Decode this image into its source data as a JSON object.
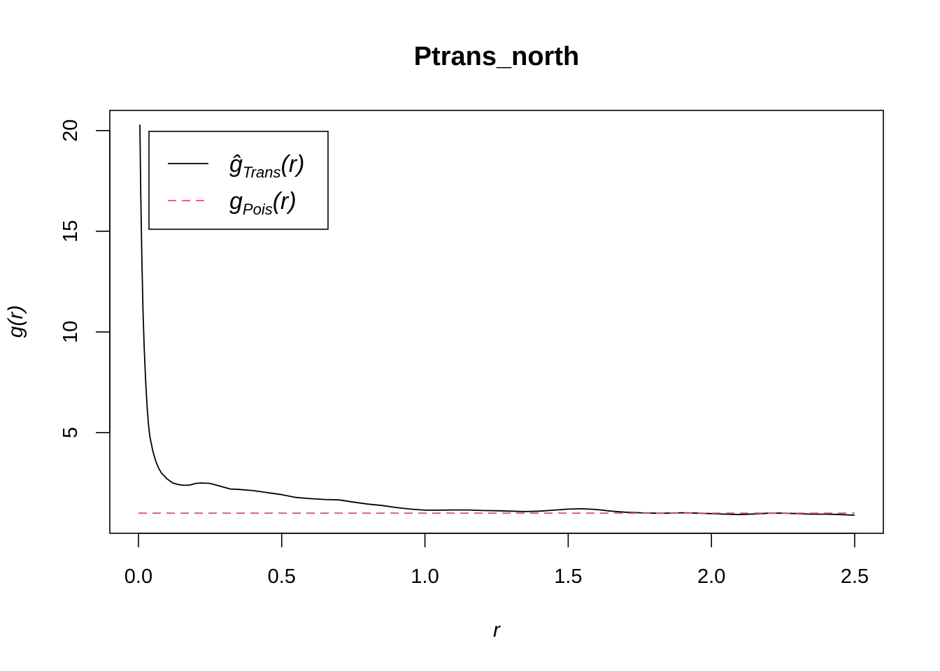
{
  "chart_data": {
    "type": "line",
    "title": "Ptrans_north",
    "xlabel": "r",
    "ylabel": "g(r)",
    "xlim": [
      -0.1,
      2.6
    ],
    "ylim": [
      0.0,
      21.0
    ],
    "x_ticks": [
      "0.0",
      "0.5",
      "1.0",
      "1.5",
      "2.0",
      "2.5"
    ],
    "y_ticks": [
      "5",
      "10",
      "15",
      "20"
    ],
    "grid": false,
    "legend_position": "top-left",
    "series": [
      {
        "name": "ĝ_Trans(r)",
        "legend_main": "ĝ",
        "legend_sub": "Trans",
        "legend_tail": "(r)",
        "color": "#000000",
        "dash": "solid",
        "x": [
          0.005,
          0.008,
          0.012,
          0.016,
          0.02,
          0.025,
          0.03,
          0.035,
          0.04,
          0.05,
          0.06,
          0.07,
          0.08,
          0.09,
          0.1,
          0.12,
          0.14,
          0.16,
          0.18,
          0.2,
          0.22,
          0.25,
          0.27,
          0.3,
          0.32,
          0.35,
          0.4,
          0.45,
          0.5,
          0.55,
          0.6,
          0.65,
          0.7,
          0.75,
          0.8,
          0.85,
          0.9,
          0.95,
          1.0,
          1.05,
          1.1,
          1.15,
          1.2,
          1.25,
          1.3,
          1.35,
          1.4,
          1.45,
          1.5,
          1.55,
          1.6,
          1.65,
          1.7,
          1.75,
          1.8,
          1.85,
          1.9,
          1.95,
          2.0,
          2.05,
          2.1,
          2.15,
          2.2,
          2.25,
          2.3,
          2.35,
          2.4,
          2.45,
          2.5
        ],
        "values": [
          20.3,
          17.0,
          13.5,
          11.0,
          9.2,
          7.6,
          6.3,
          5.4,
          4.8,
          4.1,
          3.6,
          3.25,
          3.0,
          2.85,
          2.7,
          2.5,
          2.42,
          2.38,
          2.4,
          2.48,
          2.5,
          2.48,
          2.4,
          2.28,
          2.2,
          2.18,
          2.12,
          2.02,
          1.92,
          1.78,
          1.72,
          1.68,
          1.66,
          1.55,
          1.45,
          1.38,
          1.28,
          1.2,
          1.15,
          1.15,
          1.16,
          1.16,
          1.13,
          1.12,
          1.1,
          1.08,
          1.1,
          1.15,
          1.2,
          1.22,
          1.18,
          1.1,
          1.05,
          1.02,
          1.0,
          1.0,
          1.02,
          1.0,
          0.98,
          0.95,
          0.93,
          0.96,
          1.0,
          1.0,
          0.98,
          0.95,
          0.95,
          0.93,
          0.9
        ]
      },
      {
        "name": "g_Pois(r)",
        "legend_main": "g",
        "legend_sub": "Pois",
        "legend_tail": "(r)",
        "color": "#DF536B",
        "dash": "dashed",
        "x": [
          0.0,
          2.5
        ],
        "values": [
          1.0,
          1.0
        ]
      }
    ]
  }
}
